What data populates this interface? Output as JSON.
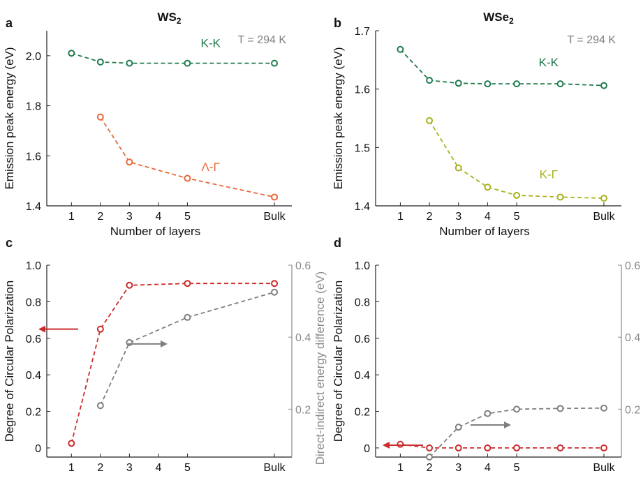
{
  "chart_data": [
    {
      "panel_label": "a",
      "title": "WS₂",
      "type": "line",
      "xlabel": "Number of layers",
      "ylabel": "Emission peak energy (eV)",
      "x_tick_labels": [
        "1",
        "2",
        "3",
        "4",
        "5",
        "Bulk"
      ],
      "x_tick_values": [
        1,
        2,
        3,
        4,
        5,
        8
      ],
      "ylim": [
        1.4,
        2.1
      ],
      "y_ticks": [
        "1.4",
        "1.6",
        "1.8",
        "2.0"
      ],
      "y_tick_values": [
        1.4,
        1.6,
        1.8,
        2.0
      ],
      "annotation": "T = 294 K",
      "series": [
        {
          "name": "K-K",
          "color": "#1e7a4c",
          "x": [
            1,
            2,
            3,
            5,
            8
          ],
          "values": [
            2.01,
            1.975,
            1.97,
            1.97,
            1.97
          ]
        },
        {
          "name": "Λ-Γ",
          "color": "#e9683a",
          "x": [
            2,
            3,
            5,
            8
          ],
          "values": [
            1.755,
            1.575,
            1.51,
            1.435
          ]
        }
      ]
    },
    {
      "panel_label": "b",
      "title": "WSe₂",
      "type": "line",
      "xlabel": "Number of layers",
      "ylabel": "Emission peak energy (eV)",
      "x_tick_labels": [
        "1",
        "2",
        "3",
        "4",
        "5",
        "Bulk"
      ],
      "x_tick_values": [
        1,
        2,
        3,
        4,
        5,
        8
      ],
      "ylim": [
        1.4,
        1.7
      ],
      "y_ticks": [
        "1.4",
        "1.5",
        "1.6",
        "1.7"
      ],
      "y_tick_values": [
        1.4,
        1.5,
        1.6,
        1.7
      ],
      "annotation": "T = 294 K",
      "series": [
        {
          "name": "K-K",
          "color": "#1e7a4c",
          "x": [
            1,
            2,
            3,
            4,
            5,
            6.5,
            8
          ],
          "values": [
            1.668,
            1.615,
            1.61,
            1.609,
            1.609,
            1.609,
            1.606
          ]
        },
        {
          "name": "K-Γ",
          "color": "#a9b21e",
          "x": [
            2,
            3,
            4,
            5,
            6.5,
            8
          ],
          "values": [
            1.546,
            1.465,
            1.432,
            1.418,
            1.415,
            1.413
          ]
        }
      ]
    },
    {
      "panel_label": "c",
      "type": "line",
      "xlabel": "Number of layers",
      "ylabel": "Degree of Circular Polarization",
      "y2label": "Direct-indirect energy difference (eV)",
      "x_tick_labels": [
        "1",
        "2",
        "3",
        "4",
        "5",
        "Bulk"
      ],
      "x_tick_values": [
        1,
        2,
        3,
        4,
        5,
        8
      ],
      "ylim": [
        -0.05,
        1.0
      ],
      "y_ticks": [
        "0",
        "0.2",
        "0.4",
        "0.6",
        "0.8",
        "1.0"
      ],
      "y_tick_values": [
        0,
        0.2,
        0.4,
        0.6,
        0.8,
        1.0
      ],
      "y2lim": [
        0.067,
        0.6
      ],
      "y2_ticks": [
        "0.2",
        "0.4",
        "0.6"
      ],
      "y2_tick_values": [
        0.2,
        0.4,
        0.6
      ],
      "series": [
        {
          "axis": "left",
          "color": "#cc2b2b",
          "x": [
            1,
            2,
            3,
            5,
            8
          ],
          "values": [
            0.025,
            0.65,
            0.89,
            0.9,
            0.9
          ]
        },
        {
          "axis": "right",
          "color": "#7f7f7f",
          "x": [
            2,
            3,
            5,
            8
          ],
          "values": [
            0.21,
            0.385,
            0.455,
            0.525
          ]
        }
      ],
      "arrows": [
        {
          "direction": "left",
          "color": "#cc2b2b"
        },
        {
          "direction": "right",
          "color": "#7f7f7f"
        }
      ]
    },
    {
      "panel_label": "d",
      "type": "line",
      "xlabel": "Number of layers",
      "ylabel": "Degree of Circular Polarization",
      "y2label": "Direct-indirect energy difference (eV)",
      "x_tick_labels": [
        "1",
        "2",
        "3",
        "4",
        "5",
        "Bulk"
      ],
      "x_tick_values": [
        1,
        2,
        3,
        4,
        5,
        8
      ],
      "ylim": [
        -0.05,
        1.0
      ],
      "y_ticks": [
        "0",
        "0.2",
        "0.4",
        "0.6",
        "0.8",
        "1.0"
      ],
      "y_tick_values": [
        0,
        0.2,
        0.4,
        0.6,
        0.8,
        1.0
      ],
      "y2lim": [
        0.067,
        0.6
      ],
      "y2_ticks": [
        "0.2",
        "0.4",
        "0.6"
      ],
      "y2_tick_values": [
        0.2,
        0.4,
        0.6
      ],
      "series": [
        {
          "axis": "left",
          "color": "#cc2b2b",
          "x": [
            1,
            2,
            3,
            4,
            5,
            6.5,
            8
          ],
          "values": [
            0.02,
            0.0,
            0.0,
            0.0,
            0.0,
            0.0,
            0.0
          ]
        },
        {
          "axis": "right",
          "color": "#7f7f7f",
          "x": [
            2,
            3,
            4,
            5,
            6.5,
            8
          ],
          "values": [
            0.067,
            0.15,
            0.188,
            0.2,
            0.202,
            0.203
          ]
        }
      ],
      "arrows": [
        {
          "direction": "left",
          "color": "#cc2b2b"
        },
        {
          "direction": "right",
          "color": "#7f7f7f"
        }
      ]
    }
  ]
}
